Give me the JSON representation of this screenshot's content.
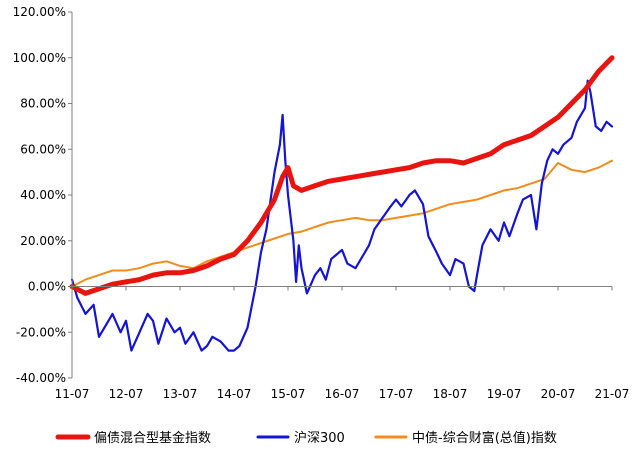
{
  "chart_data": {
    "type": "line",
    "title": "",
    "xlabel": "",
    "ylabel": "",
    "ylim": [
      -40,
      120
    ],
    "yticks": [
      -40,
      -20,
      0,
      20,
      40,
      60,
      80,
      100,
      120
    ],
    "ytick_labels": [
      "-40.00%",
      "-20.00%",
      "0.00%",
      "20.00%",
      "40.00%",
      "60.00%",
      "80.00%",
      "100.00%",
      "120.00%"
    ],
    "xlim": [
      2011.5,
      2021.5
    ],
    "xticks": [
      2011.5,
      2012.5,
      2013.5,
      2014.5,
      2015.5,
      2016.5,
      2017.5,
      2018.5,
      2019.5,
      2020.5,
      2021.5
    ],
    "xtick_labels": [
      "11-07",
      "12-07",
      "13-07",
      "14-07",
      "15-07",
      "16-07",
      "17-07",
      "18-07",
      "19-07",
      "20-07",
      "21-07"
    ],
    "grid": false,
    "legend_position": "bottom",
    "series": [
      {
        "name": "偏债混合型基金指数",
        "color": "#e8140f",
        "x": [
          2011.5,
          2011.75,
          2012.0,
          2012.25,
          2012.5,
          2012.75,
          2013.0,
          2013.25,
          2013.5,
          2013.75,
          2014.0,
          2014.25,
          2014.5,
          2014.75,
          2015.0,
          2015.25,
          2015.4,
          2015.5,
          2015.6,
          2015.75,
          2016.0,
          2016.25,
          2016.5,
          2016.75,
          2017.0,
          2017.25,
          2017.5,
          2017.75,
          2018.0,
          2018.25,
          2018.5,
          2018.75,
          2019.0,
          2019.25,
          2019.5,
          2019.75,
          2020.0,
          2020.25,
          2020.5,
          2020.75,
          2021.0,
          2021.25,
          2021.5
        ],
        "values": [
          0,
          -3,
          -1,
          1,
          2,
          3,
          5,
          6,
          6,
          7,
          9,
          12,
          14,
          20,
          28,
          38,
          48,
          52,
          44,
          42,
          44,
          46,
          47,
          48,
          49,
          50,
          51,
          52,
          54,
          55,
          55,
          54,
          56,
          58,
          62,
          64,
          66,
          70,
          74,
          80,
          86,
          94,
          100
        ]
      },
      {
        "name": "沪深300",
        "color": "#1414d2",
        "x": [
          2011.5,
          2011.6,
          2011.75,
          2011.9,
          2012.0,
          2012.1,
          2012.25,
          2012.4,
          2012.5,
          2012.6,
          2012.75,
          2012.9,
          2013.0,
          2013.1,
          2013.25,
          2013.4,
          2013.5,
          2013.6,
          2013.75,
          2013.9,
          2014.0,
          2014.1,
          2014.25,
          2014.4,
          2014.5,
          2014.6,
          2014.75,
          2014.9,
          2015.0,
          2015.1,
          2015.25,
          2015.35,
          2015.4,
          2015.45,
          2015.5,
          2015.55,
          2015.6,
          2015.65,
          2015.7,
          2015.75,
          2015.85,
          2016.0,
          2016.1,
          2016.2,
          2016.3,
          2016.4,
          2016.5,
          2016.6,
          2016.75,
          2016.9,
          2017.0,
          2017.1,
          2017.25,
          2017.4,
          2017.5,
          2017.6,
          2017.75,
          2017.85,
          2018.0,
          2018.1,
          2018.25,
          2018.35,
          2018.5,
          2018.6,
          2018.75,
          2018.85,
          2018.95,
          2019.0,
          2019.1,
          2019.25,
          2019.4,
          2019.5,
          2019.6,
          2019.75,
          2019.85,
          2020.0,
          2020.1,
          2020.2,
          2020.3,
          2020.4,
          2020.5,
          2020.6,
          2020.75,
          2020.85,
          2021.0,
          2021.05,
          2021.1,
          2021.2,
          2021.3,
          2021.4,
          2021.5
        ],
        "values": [
          3,
          -5,
          -12,
          -8,
          -22,
          -18,
          -12,
          -20,
          -15,
          -28,
          -20,
          -12,
          -15,
          -25,
          -14,
          -20,
          -18,
          -25,
          -20,
          -28,
          -26,
          -22,
          -24,
          -28,
          -28,
          -26,
          -18,
          0,
          15,
          25,
          50,
          62,
          75,
          55,
          40,
          30,
          20,
          2,
          18,
          8,
          -3,
          5,
          8,
          3,
          12,
          14,
          16,
          10,
          8,
          14,
          18,
          25,
          30,
          35,
          38,
          35,
          40,
          42,
          36,
          22,
          15,
          10,
          5,
          12,
          10,
          0,
          -2,
          5,
          18,
          25,
          20,
          28,
          22,
          32,
          38,
          40,
          25,
          45,
          55,
          60,
          58,
          62,
          65,
          72,
          78,
          90,
          85,
          70,
          68,
          72,
          70
        ]
      },
      {
        "name": "中债-综合财富(总值)指数",
        "color": "#f08c1e",
        "x": [
          2011.5,
          2011.75,
          2012.0,
          2012.25,
          2012.5,
          2012.75,
          2013.0,
          2013.25,
          2013.5,
          2013.75,
          2014.0,
          2014.25,
          2014.5,
          2014.75,
          2015.0,
          2015.25,
          2015.5,
          2015.75,
          2016.0,
          2016.25,
          2016.5,
          2016.75,
          2017.0,
          2017.25,
          2017.5,
          2017.75,
          2018.0,
          2018.25,
          2018.5,
          2018.75,
          2019.0,
          2019.25,
          2019.5,
          2019.75,
          2020.0,
          2020.25,
          2020.5,
          2020.75,
          2021.0,
          2021.25,
          2021.5
        ],
        "values": [
          0,
          3,
          5,
          7,
          7,
          8,
          10,
          11,
          9,
          8,
          11,
          13,
          15,
          17,
          19,
          21,
          23,
          24,
          26,
          28,
          29,
          30,
          29,
          29,
          30,
          31,
          32,
          34,
          36,
          37,
          38,
          40,
          42,
          43,
          45,
          47,
          54,
          51,
          50,
          52,
          55
        ]
      }
    ]
  }
}
